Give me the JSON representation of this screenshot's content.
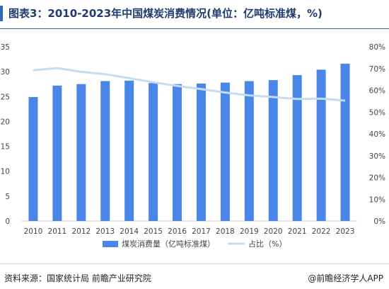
{
  "title": "图表3：2010-2023年中国煤炭消费情况(单位：亿吨标准煤，%)",
  "footer": {
    "source": "资料来源：国家统计局 前瞻产业研究院",
    "credit": "@前瞻经济学人APP"
  },
  "colors": {
    "bar": "#4a86e8",
    "line": "#c5dcf4",
    "title": "#1f3b70",
    "accent": "#2e6ab8"
  },
  "chart_data": {
    "type": "bar",
    "categories": [
      "2010",
      "2011",
      "2012",
      "2013",
      "2014",
      "2015",
      "2016",
      "2017",
      "2018",
      "2019",
      "2020",
      "2021",
      "2022",
      "2023"
    ],
    "series": [
      {
        "name": "煤炭消费量（亿吨标准煤）",
        "type": "bar",
        "axis": "left",
        "values": [
          24.9,
          27.2,
          27.5,
          28.1,
          28.2,
          27.7,
          27.5,
          27.6,
          27.8,
          28.1,
          28.3,
          29.3,
          30.4,
          31.6
        ]
      },
      {
        "name": "占比（%）",
        "type": "line",
        "axis": "right",
        "values": [
          69.2,
          70.2,
          68.5,
          67.4,
          65.6,
          63.7,
          62.0,
          60.6,
          59.0,
          57.7,
          56.9,
          56.0,
          56.2,
          55.3
        ]
      }
    ],
    "yleft": {
      "min": 0,
      "max": 35,
      "ticks": [
        "0",
        "5",
        "10",
        "15",
        "20",
        "25",
        "30",
        "35"
      ]
    },
    "yright": {
      "min": 0,
      "max": 80,
      "ticks": [
        "0%",
        "10%",
        "20%",
        "30%",
        "40%",
        "50%",
        "60%",
        "70%",
        "80%"
      ]
    },
    "legend": {
      "position": "bottom",
      "items": [
        "煤炭消费量（亿吨标准煤）",
        "占比（%）"
      ]
    },
    "grid": false
  }
}
